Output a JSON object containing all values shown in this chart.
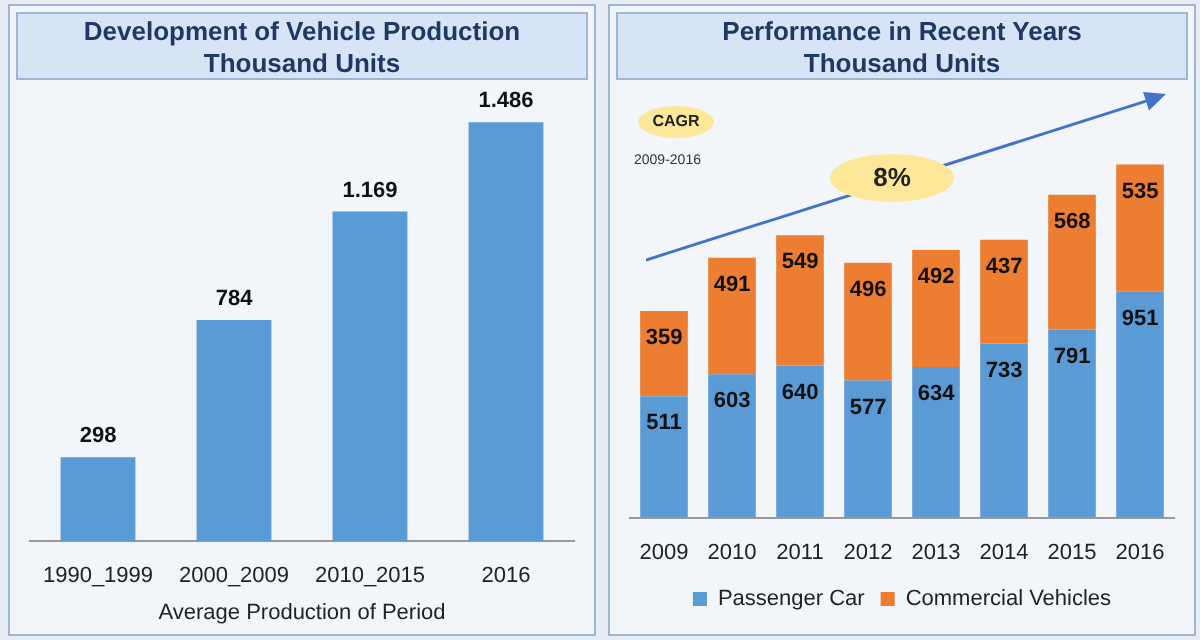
{
  "chart_data": [
    {
      "type": "bar",
      "title": "Development of Vehicle Production",
      "subtitle": "Thousand Units",
      "xlabel": "Average Production of Period",
      "categories": [
        "1990_1999",
        "2000_2009",
        "2010_2015",
        "2016"
      ],
      "color": "#5b9bd5",
      "values": [
        298,
        784,
        1169,
        1486
      ],
      "value_labels": [
        "298",
        "784",
        "1.169",
        "1.486"
      ],
      "grid": false,
      "legend": false
    },
    {
      "type": "bar",
      "title": "Performance in Recent Years",
      "subtitle": "Thousand Units",
      "categories": [
        "2009",
        "2010",
        "2011",
        "2012",
        "2013",
        "2014",
        "2015",
        "2016"
      ],
      "stacked": true,
      "data_labels": true,
      "legend": "bottom",
      "grid": false,
      "series": [
        {
          "name": "Passenger Car",
          "color": "#5b9bd5",
          "values": [
            511,
            603,
            640,
            577,
            634,
            733,
            791,
            951
          ]
        },
        {
          "name": "Commercial Vehicles",
          "color": "#ed7d31",
          "values": [
            359,
            491,
            549,
            496,
            492,
            437,
            568,
            535
          ]
        }
      ],
      "annotations": [
        "CAGR",
        "2009-2016",
        "8%"
      ]
    }
  ]
}
